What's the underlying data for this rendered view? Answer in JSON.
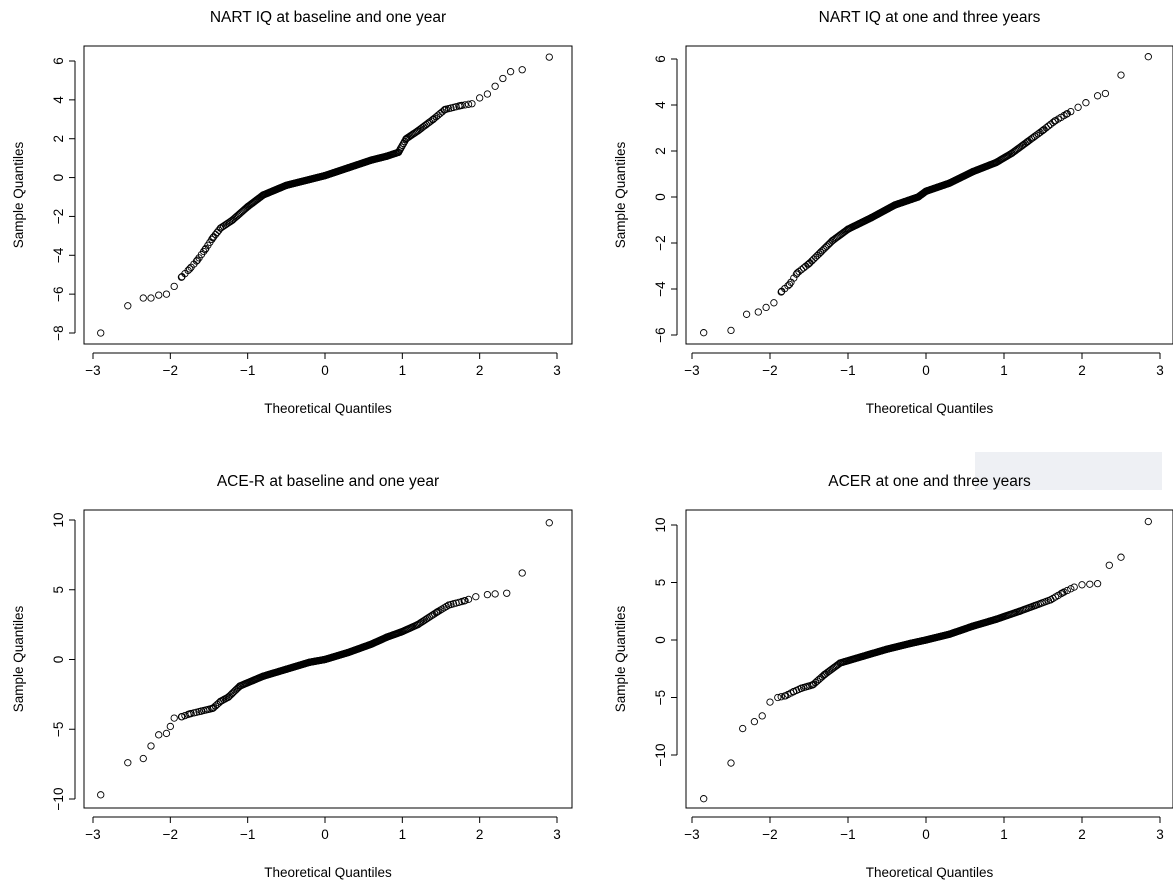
{
  "chart_data": [
    {
      "type": "scatter",
      "title": "NART IQ at baseline and one year",
      "xlabel": "Theoretical Quantiles",
      "ylabel": "Sample Quantiles",
      "xlim": [
        -3,
        3
      ],
      "ylim": [
        -8,
        6
      ],
      "xticks": [
        -3,
        -2,
        -1,
        0,
        1,
        2,
        3
      ],
      "yticks": [
        -8,
        -6,
        -4,
        -2,
        0,
        2,
        4,
        6
      ],
      "grid": false,
      "n_points": 300,
      "x": [
        -2.9,
        -2.55,
        -2.35,
        -2.25,
        -2.15,
        -2.05,
        -1.95,
        -1.85,
        -1.75,
        -1.65,
        -1.55,
        -1.45,
        -1.35,
        -1.2,
        -1.0,
        -0.8,
        -0.5,
        -0.2,
        0.0,
        0.3,
        0.6,
        0.8,
        0.95,
        1.05,
        1.2,
        1.4,
        1.55,
        1.75,
        1.9,
        2.0,
        2.1,
        2.2,
        2.3,
        2.4,
        2.55,
        2.9
      ],
      "y": [
        -8.0,
        -6.6,
        -6.2,
        -6.2,
        -6.05,
        -6.0,
        -5.6,
        -5.1,
        -4.7,
        -4.25,
        -3.7,
        -3.1,
        -2.6,
        -2.2,
        -1.5,
        -0.9,
        -0.4,
        -0.1,
        0.1,
        0.5,
        0.9,
        1.1,
        1.3,
        2.0,
        2.4,
        3.0,
        3.5,
        3.7,
        3.8,
        4.1,
        4.3,
        4.7,
        5.1,
        5.45,
        5.55,
        6.2
      ]
    },
    {
      "type": "scatter",
      "title": "NART IQ at one and three years",
      "xlabel": "Theoretical Quantiles",
      "ylabel": "Sample Quantiles",
      "xlim": [
        -3,
        3
      ],
      "ylim": [
        -6,
        6
      ],
      "xticks": [
        -3,
        -2,
        -1,
        0,
        1,
        2,
        3
      ],
      "yticks": [
        -6,
        -4,
        -2,
        0,
        2,
        4,
        6
      ],
      "grid": false,
      "n_points": 300,
      "x": [
        -2.85,
        -2.5,
        -2.3,
        -2.15,
        -2.05,
        -1.95,
        -1.85,
        -1.75,
        -1.65,
        -1.5,
        -1.35,
        -1.2,
        -1.0,
        -0.7,
        -0.4,
        -0.1,
        0.0,
        0.3,
        0.6,
        0.9,
        1.1,
        1.3,
        1.5,
        1.65,
        1.8,
        1.95,
        2.05,
        2.2,
        2.3,
        2.5,
        2.85
      ],
      "y": [
        -5.9,
        -5.8,
        -5.1,
        -5.0,
        -4.8,
        -4.6,
        -4.1,
        -3.8,
        -3.3,
        -2.9,
        -2.4,
        -1.9,
        -1.4,
        -0.9,
        -0.35,
        0.0,
        0.25,
        0.6,
        1.1,
        1.5,
        1.9,
        2.4,
        2.9,
        3.3,
        3.6,
        3.9,
        4.1,
        4.4,
        4.5,
        5.3,
        6.1
      ]
    },
    {
      "type": "scatter",
      "title": "ACE-R at baseline and one year",
      "xlabel": "Theoretical Quantiles",
      "ylabel": "Sample Quantiles",
      "xlim": [
        -3,
        3
      ],
      "ylim": [
        -10,
        10
      ],
      "xticks": [
        -3,
        -2,
        -1,
        0,
        1,
        2,
        3
      ],
      "yticks": [
        -10,
        -5,
        0,
        5,
        10
      ],
      "grid": false,
      "n_points": 300,
      "x": [
        -2.9,
        -2.55,
        -2.35,
        -2.25,
        -2.15,
        -2.05,
        -2.0,
        -1.95,
        -1.85,
        -1.75,
        -1.6,
        -1.45,
        -1.35,
        -1.25,
        -1.1,
        -0.8,
        -0.5,
        -0.2,
        0.0,
        0.3,
        0.6,
        0.8,
        1.0,
        1.2,
        1.45,
        1.6,
        1.8,
        1.95,
        2.1,
        2.2,
        2.35,
        2.55,
        2.9
      ],
      "y": [
        -9.7,
        -7.4,
        -7.1,
        -6.2,
        -5.4,
        -5.3,
        -4.8,
        -4.2,
        -4.1,
        -3.9,
        -3.7,
        -3.5,
        -3.0,
        -2.7,
        -1.9,
        -1.2,
        -0.7,
        -0.2,
        0.0,
        0.5,
        1.1,
        1.6,
        2.0,
        2.5,
        3.4,
        3.9,
        4.2,
        4.5,
        4.65,
        4.7,
        4.75,
        6.2,
        9.8
      ]
    },
    {
      "type": "scatter",
      "title": "ACER at one and three years",
      "xlabel": "Theoretical Quantiles",
      "ylabel": "Sample Quantiles",
      "xlim": [
        -3,
        3
      ],
      "ylim": [
        -14,
        10
      ],
      "xticks": [
        -3,
        -2,
        -1,
        0,
        1,
        2,
        3
      ],
      "yticks": [
        -10,
        -5,
        0,
        5,
        10
      ],
      "grid": false,
      "n_points": 300,
      "x": [
        -2.85,
        -2.5,
        -2.35,
        -2.2,
        -2.1,
        -2.0,
        -1.9,
        -1.8,
        -1.7,
        -1.6,
        -1.45,
        -1.3,
        -1.1,
        -0.8,
        -0.5,
        -0.2,
        0.0,
        0.3,
        0.6,
        0.9,
        1.2,
        1.4,
        1.6,
        1.75,
        1.9,
        2.0,
        2.1,
        2.2,
        2.35,
        2.5,
        2.85
      ],
      "y": [
        -13.8,
        -10.7,
        -7.7,
        -7.1,
        -6.6,
        -5.4,
        -5.0,
        -4.85,
        -4.5,
        -4.2,
        -3.9,
        -3.0,
        -2.0,
        -1.4,
        -0.8,
        -0.3,
        0.0,
        0.5,
        1.2,
        1.8,
        2.5,
        3.0,
        3.5,
        4.1,
        4.6,
        4.8,
        4.85,
        4.9,
        6.5,
        7.2,
        10.3
      ]
    }
  ]
}
